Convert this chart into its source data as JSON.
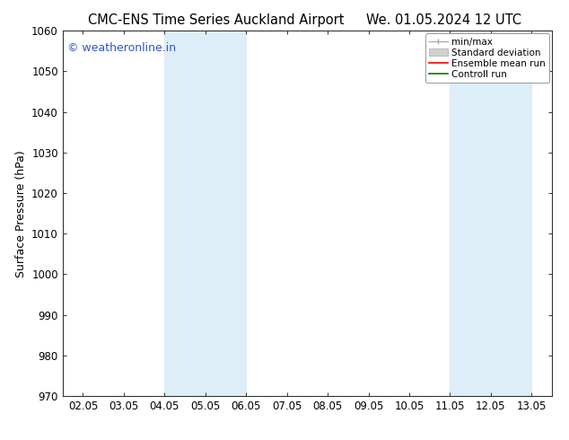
{
  "title_left": "CMC-ENS Time Series Auckland Airport",
  "title_right": "We. 01.05.2024 12 UTC",
  "ylabel": "Surface Pressure (hPa)",
  "ylim": [
    970,
    1060
  ],
  "yticks": [
    970,
    980,
    990,
    1000,
    1010,
    1020,
    1030,
    1040,
    1050,
    1060
  ],
  "xtick_labels": [
    "02.05",
    "03.05",
    "04.05",
    "05.05",
    "06.05",
    "07.05",
    "08.05",
    "09.05",
    "10.05",
    "11.05",
    "12.05",
    "13.05"
  ],
  "xtick_positions": [
    0,
    1,
    2,
    3,
    4,
    5,
    6,
    7,
    8,
    9,
    10,
    11
  ],
  "xlim": [
    -0.5,
    11.5
  ],
  "shaded_bands": [
    {
      "x_start": 2,
      "x_end": 4,
      "color": "#ddeef8"
    },
    {
      "x_start": 9,
      "x_end": 11,
      "color": "#ddeef8"
    }
  ],
  "watermark_text": "© weatheronline.in",
  "watermark_color": "#3355cc",
  "watermark_fontsize": 9,
  "legend_entries": [
    {
      "label": "min/max",
      "color": "#aaaaaa"
    },
    {
      "label": "Standard deviation",
      "color": "#cccccc"
    },
    {
      "label": "Ensemble mean run",
      "color": "red"
    },
    {
      "label": "Controll run",
      "color": "green"
    }
  ],
  "background_color": "#ffffff",
  "title_fontsize": 10.5,
  "axis_fontsize": 8.5,
  "ylabel_fontsize": 9
}
